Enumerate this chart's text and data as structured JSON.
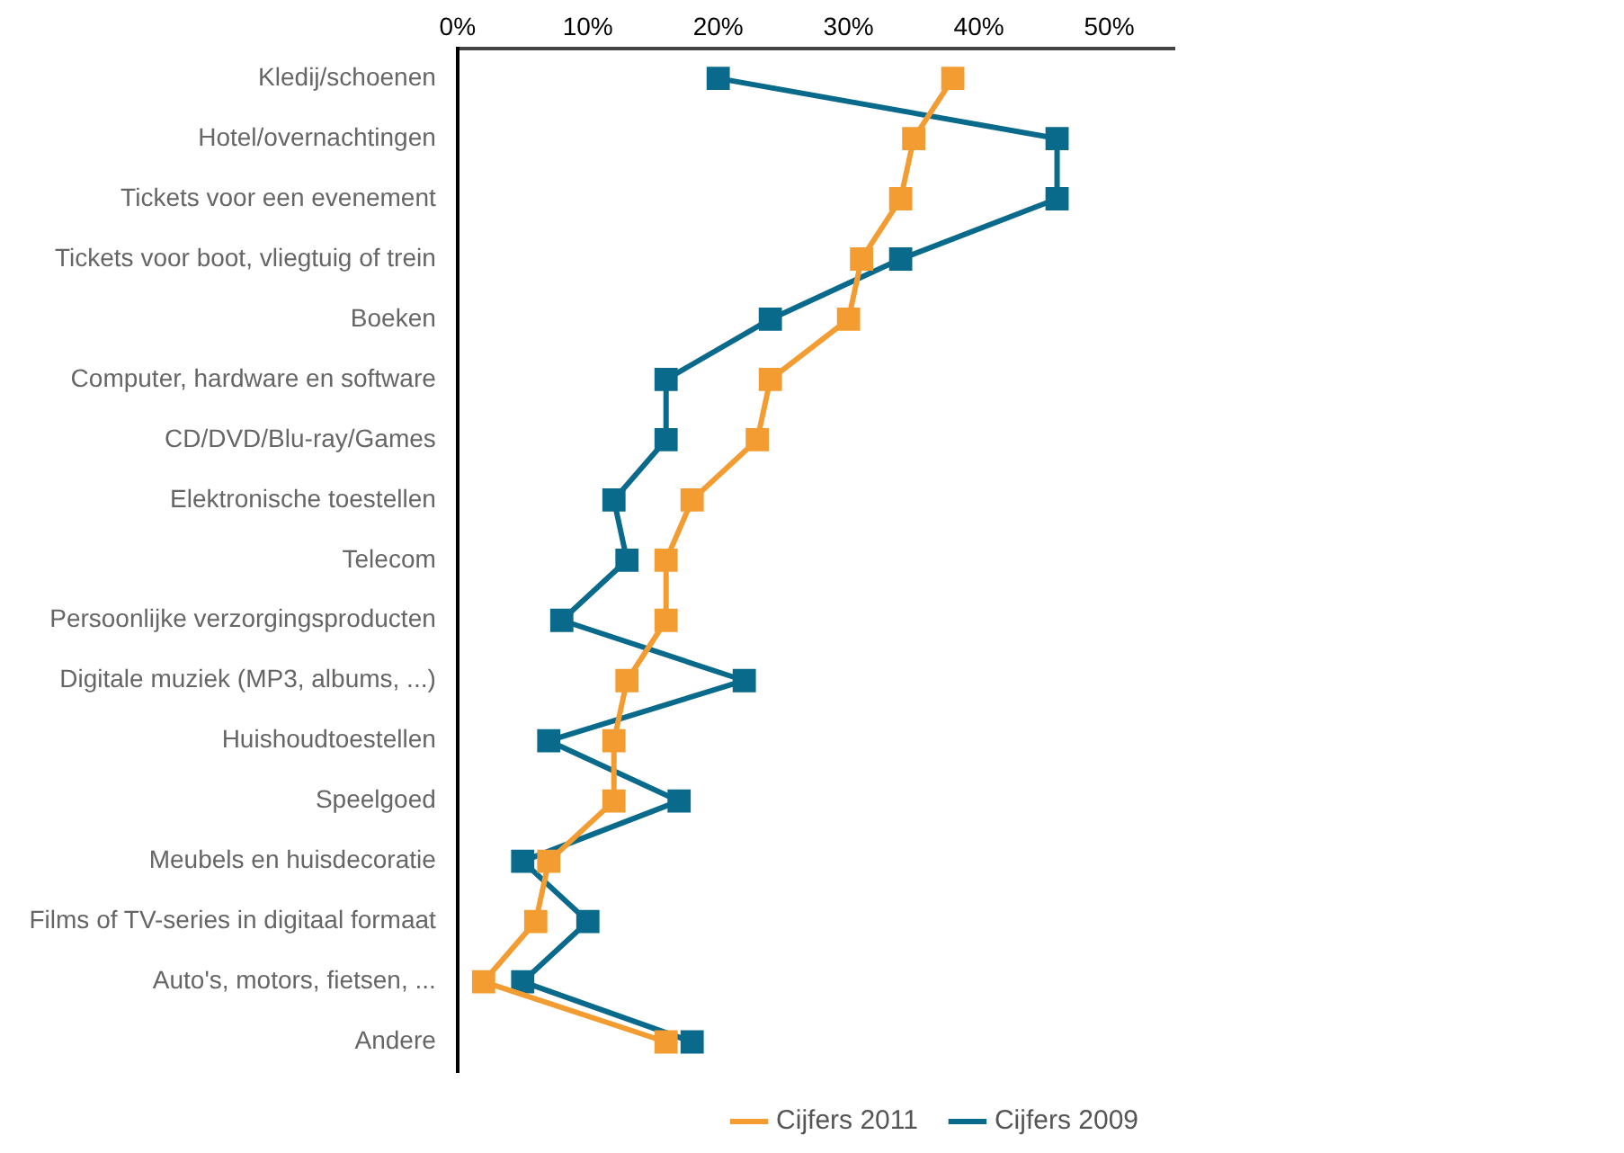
{
  "chart_data": {
    "type": "line",
    "orientation": "horizontal",
    "categories": [
      "Kledij/schoenen",
      "Hotel/overnachtingen",
      "Tickets voor een evenement",
      "Tickets voor boot, vliegtuig of trein",
      "Boeken",
      "Computer, hardware en software",
      "CD/DVD/Blu-ray/Games",
      "Elektronische toestellen",
      "Telecom",
      "Persoonlijke verzorgingsproducten",
      "Digitale muziek (MP3, albums, ...)",
      "Huishoudtoestellen",
      "Speelgoed",
      "Meubels en huisdecoratie",
      "Films of TV-series in digitaal formaat",
      "Auto's, motors, fietsen, ...",
      "Andere"
    ],
    "series": [
      {
        "name": "Cijfers 2011",
        "color": "#f39c32",
        "values": [
          38,
          35,
          34,
          31,
          30,
          24,
          23,
          18,
          16,
          16,
          13,
          12,
          12,
          7,
          6,
          2,
          16
        ]
      },
      {
        "name": "Cijfers 2009",
        "color": "#0a6a8c",
        "values": [
          20,
          46,
          46,
          34,
          24,
          16,
          16,
          12,
          13,
          8,
          22,
          7,
          17,
          5,
          10,
          5,
          18
        ]
      }
    ],
    "xlim": [
      0,
      55
    ],
    "xticks": [
      {
        "value": 0,
        "label": "0%"
      },
      {
        "value": 10,
        "label": "10%"
      },
      {
        "value": 20,
        "label": "20%"
      },
      {
        "value": 30,
        "label": "30%"
      },
      {
        "value": 40,
        "label": "40%"
      },
      {
        "value": 50,
        "label": "50%"
      }
    ],
    "grid": false,
    "legend": "bottom right",
    "marker": "square",
    "line_style": "solid"
  }
}
